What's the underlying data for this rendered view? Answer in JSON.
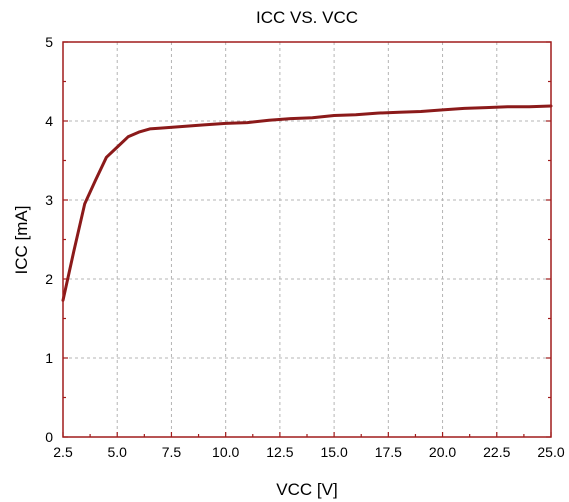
{
  "chart_data": {
    "type": "line",
    "title": "ICC  VS.  VCC",
    "xlabel": "VCC [V]",
    "ylabel": "ICC [mA]",
    "xlim": [
      2.5,
      25.0
    ],
    "ylim": [
      0,
      5
    ],
    "x_ticks": [
      "2.5",
      "5.0",
      "7.5",
      "10.0",
      "12.5",
      "15.0",
      "17.5",
      "20.0",
      "22.5",
      "25.0"
    ],
    "y_ticks": [
      "0",
      "1",
      "2",
      "3",
      "4",
      "5"
    ],
    "grid": true,
    "colors": {
      "series": "#8b1a1a",
      "frame": "#a01c1c",
      "grid": "#b4b4b4"
    },
    "series": [
      {
        "x": [
          2.5,
          3.0,
          3.5,
          4.0,
          4.5,
          5.0,
          5.5,
          6.0,
          6.5,
          7.0,
          8.0,
          9.0,
          10.0,
          11.0,
          12.0,
          13.0,
          14.0,
          15.0,
          16.0,
          17.0,
          18.0,
          19.0,
          20.0,
          21.0,
          22.0,
          23.0,
          24.0,
          25.0
        ],
        "values": [
          1.73,
          2.35,
          2.95,
          3.25,
          3.54,
          3.67,
          3.8,
          3.86,
          3.9,
          3.91,
          3.93,
          3.95,
          3.97,
          3.98,
          4.01,
          4.03,
          4.04,
          4.07,
          4.08,
          4.1,
          4.11,
          4.12,
          4.14,
          4.16,
          4.17,
          4.18,
          4.18,
          4.19
        ]
      }
    ]
  }
}
